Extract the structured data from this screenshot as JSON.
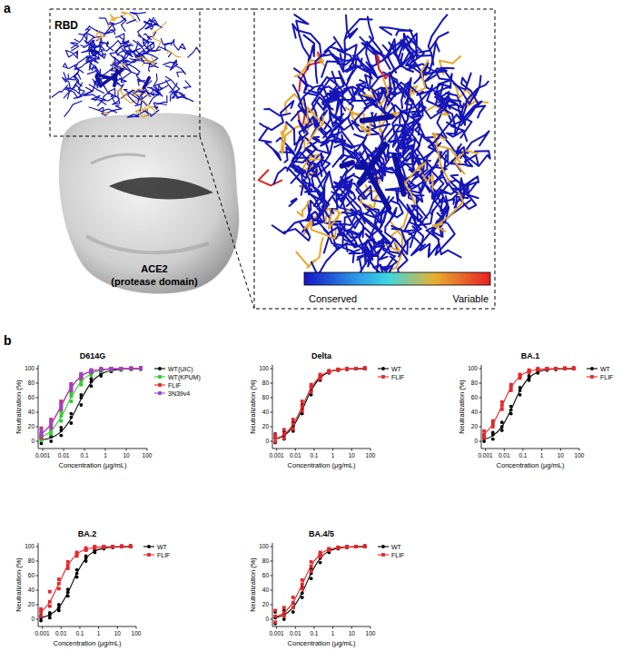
{
  "figure": {
    "panel_a": {
      "label": "a",
      "rbd_label": "RBD",
      "receptor_label": "ACE2",
      "receptor_sublabel": "(protease domain)",
      "scale_low": "Conserved",
      "scale_high": "Variable"
    },
    "panel_b": {
      "label": "b"
    }
  },
  "chart_data": [
    {
      "type": "scatter",
      "title": "D614G",
      "x_label": "Concentration (μg/mL)",
      "y_label": "Neutralization (%)",
      "log": "x",
      "xlim": [
        0.0006,
        100
      ],
      "xticks": [
        0.001,
        0.01,
        0.1,
        1,
        10,
        100
      ],
      "ylim": [
        -10,
        105
      ],
      "yticks": [
        0,
        20,
        40,
        60,
        80,
        100
      ],
      "legend": "right",
      "x": [
        0.00085,
        0.0025,
        0.0076,
        0.023,
        0.069,
        0.21,
        0.62,
        1.9,
        5.6,
        17,
        50
      ],
      "series": [
        {
          "name": "WT(UIC)",
          "color": "#000000",
          "marker": "circle",
          "values": [
            [
              -3,
              2,
              5
            ],
            [
              0,
              6,
              9
            ],
            [
              8,
              15,
              19
            ],
            [
              25,
              33,
              38
            ],
            [
              50,
              60,
              64
            ],
            [
              76,
              82,
              86
            ],
            [
              90,
              93,
              95
            ],
            [
              96,
              98,
              99
            ],
            [
              98,
              99,
              100
            ],
            [
              99,
              100,
              100
            ],
            [
              99,
              100,
              101
            ]
          ],
          "fit": [
            1.7,
            4.8,
            13.2,
            31.5,
            58,
            80.8,
            92.5,
            97.4,
            99.1,
            99.7,
            99.9
          ]
        },
        {
          "name": "WT(KPUM)",
          "color": "#2ecc2e",
          "marker": "square",
          "values": [
            [
              1,
              6,
              9
            ],
            [
              10,
              15,
              19
            ],
            [
              28,
              35,
              40
            ],
            [
              55,
              62,
              66
            ],
            [
              78,
              83,
              86
            ],
            [
              91,
              94,
              95
            ],
            [
              96,
              98,
              99
            ],
            [
              98,
              99,
              100
            ],
            [
              99,
              100,
              100
            ],
            [
              99,
              100,
              100
            ],
            [
              100,
              100,
              101
            ]
          ],
          "fit": [
            5.4,
            14.3,
            33.6,
            60.5,
            82.1,
            93.3,
            97.6,
            99.2,
            99.7,
            99.9,
            100
          ]
        },
        {
          "name": "FLIF",
          "color": "#e8262a",
          "marker": "square",
          "values": [
            [
              5,
              10,
              18
            ],
            [
              20,
              25,
              30
            ],
            [
              44,
              50,
              55
            ],
            [
              70,
              75,
              79
            ],
            [
              87,
              90,
              92
            ],
            [
              95,
              97,
              98
            ],
            [
              98,
              99,
              100
            ],
            [
              99,
              100,
              100
            ],
            [
              100,
              100,
              100
            ],
            [
              100,
              100,
              101
            ],
            [
              100,
              100,
              101
            ]
          ],
          "fit": [
            9.6,
            23.8,
            48.7,
            74.2,
            89.6,
            96.3,
            98.7,
            99.6,
            99.9,
            100,
            100
          ]
        },
        {
          "name": "3N39v4",
          "color": "#a040d0",
          "marker": "square",
          "values": [
            [
              7,
              12,
              16
            ],
            [
              18,
              24,
              28
            ],
            [
              45,
              48,
              53
            ],
            [
              71,
              74,
              78
            ],
            [
              88,
              90,
              93
            ],
            [
              95,
              96,
              98
            ],
            [
              98,
              99,
              99
            ],
            [
              99,
              100,
              100
            ],
            [
              100,
              100,
              100
            ],
            [
              100,
              100,
              100
            ],
            [
              100,
              100,
              101
            ]
          ],
          "fit": [
            9.6,
            23.8,
            48.7,
            74.2,
            89.6,
            96.3,
            98.7,
            99.6,
            99.9,
            100,
            100
          ]
        }
      ]
    },
    {
      "type": "scatter",
      "title": "Delta",
      "x_label": "Concentration (μg/mL)",
      "y_label": "Neutralization (%)",
      "log": "x",
      "xlim": [
        0.0006,
        100
      ],
      "xticks": [
        0.001,
        0.01,
        0.1,
        1,
        10,
        100
      ],
      "ylim": [
        -10,
        105
      ],
      "yticks": [
        0,
        20,
        40,
        60,
        80,
        100
      ],
      "legend": "right",
      "x": [
        0.00085,
        0.0025,
        0.0076,
        0.023,
        0.069,
        0.21,
        0.62,
        1.9,
        5.6,
        17,
        50
      ],
      "series": [
        {
          "name": "WT",
          "color": "#000000",
          "marker": "circle",
          "values": [
            [
              -2,
              4,
              10
            ],
            [
              3,
              8,
              14
            ],
            [
              14,
              21,
              26
            ],
            [
              38,
              44,
              50
            ],
            [
              64,
              70,
              75
            ],
            [
              84,
              88,
              90
            ],
            [
              94,
              95,
              97
            ],
            [
              98,
              98,
              99
            ],
            [
              99,
              100,
              100
            ],
            [
              100,
              100,
              100
            ],
            [
              100,
              100,
              101
            ]
          ],
          "fit": [
            2.8,
            7.7,
            20.2,
            43.4,
            69.7,
            87.5,
            95.4,
            98.4,
            99.5,
            99.8,
            99.9
          ]
        },
        {
          "name": "FLIF",
          "color": "#e8262a",
          "marker": "square",
          "values": [
            [
              -1,
              5,
              9
            ],
            [
              4,
              10,
              16
            ],
            [
              17,
              24,
              30
            ],
            [
              42,
              48,
              55
            ],
            [
              68,
              74,
              78
            ],
            [
              86,
              90,
              92
            ],
            [
              95,
              96,
              97
            ],
            [
              98,
              99,
              99
            ],
            [
              99,
              100,
              100
            ],
            [
              100,
              100,
              100
            ],
            [
              100,
              100,
              101
            ]
          ],
          "fit": [
            3.3,
            9.1,
            23.3,
            47.9,
            73.4,
            89.4,
            96.1,
            98.7,
            99.6,
            99.9,
            100
          ]
        }
      ]
    },
    {
      "type": "scatter",
      "title": "BA.1",
      "x_label": "Concentration (μg/mL)",
      "y_label": "Neutralization (%)",
      "log": "x",
      "xlim": [
        0.0006,
        100
      ],
      "xticks": [
        0.001,
        0.01,
        0.1,
        1,
        10,
        100
      ],
      "ylim": [
        -10,
        105
      ],
      "yticks": [
        0,
        20,
        40,
        60,
        80,
        100
      ],
      "legend": "right",
      "x": [
        0.00085,
        0.0025,
        0.0076,
        0.023,
        0.069,
        0.21,
        0.62,
        1.9,
        5.6,
        17,
        50
      ],
      "series": [
        {
          "name": "WT",
          "color": "#000000",
          "marker": "circle",
          "values": [
            [
              0,
              4,
              8
            ],
            [
              3,
              9,
              12
            ],
            [
              15,
              20,
              26
            ],
            [
              38,
              43,
              48
            ],
            [
              64,
              70,
              74
            ],
            [
              84,
              87,
              90
            ],
            [
              94,
              95,
              97
            ],
            [
              98,
              98,
              99
            ],
            [
              99,
              99,
              100
            ],
            [
              100,
              100,
              100
            ],
            [
              100,
              100,
              101
            ]
          ],
          "fit": [
            2.8,
            7.7,
            20.2,
            43.4,
            69.7,
            87.5,
            95.4,
            98.4,
            99.5,
            99.8,
            99.9
          ]
        },
        {
          "name": "FLIF",
          "color": "#e8262a",
          "marker": "square",
          "values": [
            [
              5,
              9,
              14
            ],
            [
              20,
              24,
              28
            ],
            [
              44,
              49,
              54
            ],
            [
              70,
              74,
              78
            ],
            [
              87,
              90,
              92
            ],
            [
              95,
              96,
              98
            ],
            [
              98,
              99,
              100
            ],
            [
              99,
              100,
              100
            ],
            [
              100,
              100,
              100
            ],
            [
              100,
              100,
              101
            ],
            [
              100,
              100,
              101
            ]
          ],
          "fit": [
            9.6,
            23.8,
            48.7,
            74.2,
            89.6,
            96.3,
            98.7,
            99.6,
            99.9,
            100,
            100
          ]
        }
      ]
    },
    {
      "type": "scatter",
      "title": "BA.2",
      "x_label": "Concentration (μg/mL)",
      "y_label": "Neutralization (%)",
      "log": "x",
      "xlim": [
        0.0006,
        100
      ],
      "xticks": [
        0.001,
        0.01,
        0.1,
        1,
        10,
        100
      ],
      "ylim": [
        -10,
        105
      ],
      "yticks": [
        0,
        20,
        40,
        60,
        80,
        100
      ],
      "legend": "right",
      "x": [
        0.00085,
        0.0025,
        0.0076,
        0.023,
        0.069,
        0.21,
        0.62,
        1.9,
        5.6,
        17,
        50
      ],
      "series": [
        {
          "name": "WT",
          "color": "#000000",
          "marker": "circle",
          "values": [
            [
              -2,
              2,
              5
            ],
            [
              2,
              6,
              9
            ],
            [
              12,
              16,
              20
            ],
            [
              32,
              37,
              41
            ],
            [
              58,
              63,
              68
            ],
            [
              80,
              84,
              87
            ],
            [
              92,
              94,
              96
            ],
            [
              97,
              98,
              99
            ],
            [
              99,
              99,
              100
            ],
            [
              100,
              100,
              100
            ],
            [
              100,
              100,
              101
            ]
          ],
          "fit": [
            2.1,
            5.9,
            16,
            36.5,
            63.3,
            84,
            93.9,
            97.9,
            99.3,
            99.8,
            99.9
          ]
        },
        {
          "name": "FLIF",
          "color": "#e8262a",
          "marker": "square",
          "values": [
            [
              4,
              10,
              14
            ],
            [
              18,
              24,
              38
            ],
            [
              42,
              49,
              55
            ],
            [
              70,
              74,
              79
            ],
            [
              87,
              90,
              92
            ],
            [
              95,
              96,
              98
            ],
            [
              98,
              99,
              100
            ],
            [
              99,
              100,
              100
            ],
            [
              100,
              100,
              100
            ],
            [
              100,
              100,
              101
            ],
            [
              100,
              100,
              101
            ]
          ],
          "fit": [
            9.6,
            23.8,
            48.7,
            74.2,
            89.6,
            96.3,
            98.7,
            99.6,
            99.9,
            100,
            100
          ]
        }
      ]
    },
    {
      "type": "scatter",
      "title": "BA.4/5",
      "x_label": "Concentration (μg/mL)",
      "y_label": "Neutralization (%)",
      "log": "x",
      "xlim": [
        0.0006,
        100
      ],
      "xticks": [
        0.001,
        0.01,
        0.1,
        1,
        10,
        100
      ],
      "ylim": [
        -10,
        105
      ],
      "yticks": [
        0,
        20,
        40,
        60,
        80,
        100
      ],
      "legend": "right",
      "x": [
        0.00085,
        0.0025,
        0.0076,
        0.023,
        0.069,
        0.21,
        0.62,
        1.9,
        5.6,
        17,
        50
      ],
      "series": [
        {
          "name": "WT",
          "color": "#000000",
          "marker": "circle",
          "values": [
            [
              -6,
              2,
              10
            ],
            [
              0,
              6,
              12
            ],
            [
              10,
              16,
              22
            ],
            [
              30,
              36,
              44
            ],
            [
              56,
              63,
              70
            ],
            [
              78,
              84,
              88
            ],
            [
              92,
              94,
              96
            ],
            [
              97,
              98,
              99
            ],
            [
              99,
              99,
              100
            ],
            [
              100,
              100,
              100
            ],
            [
              100,
              100,
              101
            ]
          ],
          "fit": [
            2.1,
            5.9,
            16,
            36.5,
            63.3,
            84,
            93.9,
            97.9,
            99.3,
            99.8,
            99.9
          ]
        },
        {
          "name": "FLIF",
          "color": "#e8262a",
          "marker": "square",
          "values": [
            [
              -4,
              4,
              12
            ],
            [
              4,
              9,
              16
            ],
            [
              16,
              23,
              30
            ],
            [
              42,
              48,
              54
            ],
            [
              66,
              73,
              79
            ],
            [
              86,
              89,
              92
            ],
            [
              95,
              96,
              97
            ],
            [
              98,
              99,
              99
            ],
            [
              99,
              100,
              100
            ],
            [
              100,
              100,
              100
            ],
            [
              100,
              100,
              101
            ]
          ],
          "fit": [
            3.3,
            9.1,
            23.3,
            47.9,
            73.4,
            89.4,
            96.1,
            98.7,
            99.6,
            99.9,
            100
          ]
        }
      ]
    }
  ]
}
